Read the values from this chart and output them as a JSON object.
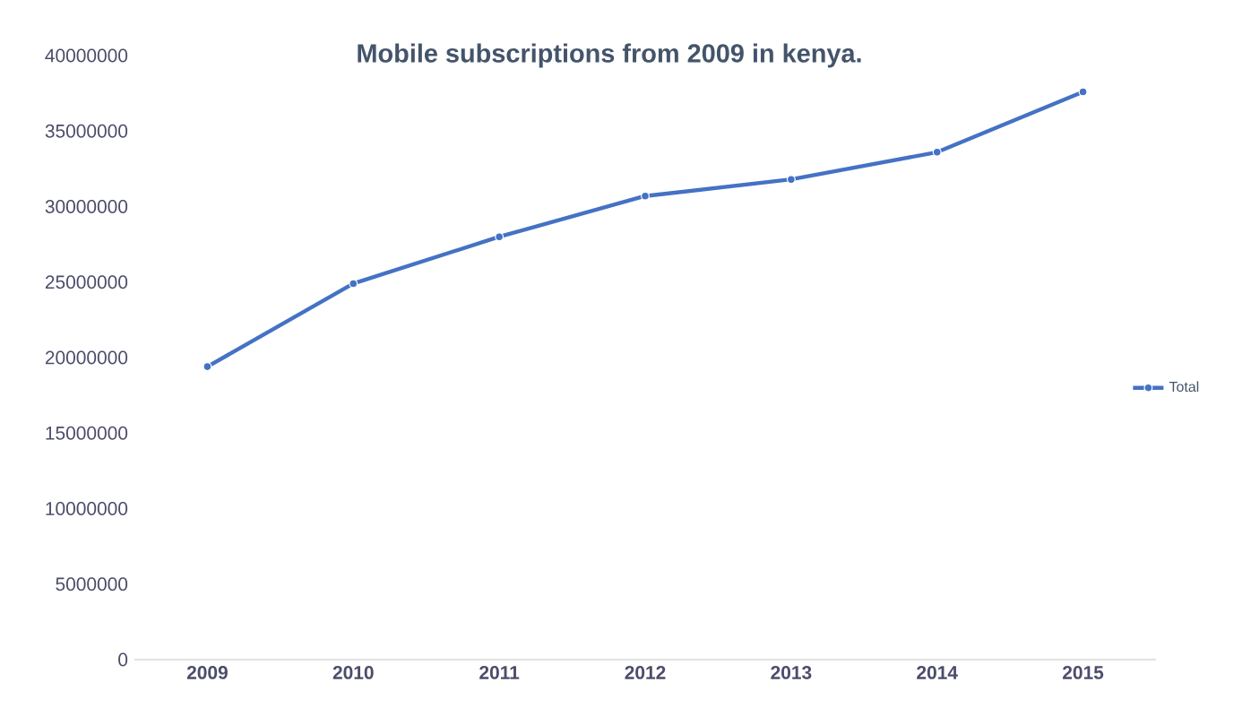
{
  "chart_data": {
    "type": "line",
    "title": "Mobile subscriptions from 2009 in kenya.",
    "categories": [
      "2009",
      "2010",
      "2011",
      "2012",
      "2013",
      "2014",
      "2015"
    ],
    "series": [
      {
        "name": "Total",
        "color": "#4472c4",
        "values": [
          19400000,
          24900000,
          28000000,
          30700000,
          31800000,
          33600000,
          37600000
        ]
      }
    ],
    "ylim": [
      0,
      40000000
    ],
    "yticks": [
      0,
      5000000,
      10000000,
      15000000,
      20000000,
      25000000,
      30000000,
      35000000,
      40000000
    ],
    "grid": false,
    "legend": "right",
    "marker": "circle",
    "line_style": "solid"
  }
}
